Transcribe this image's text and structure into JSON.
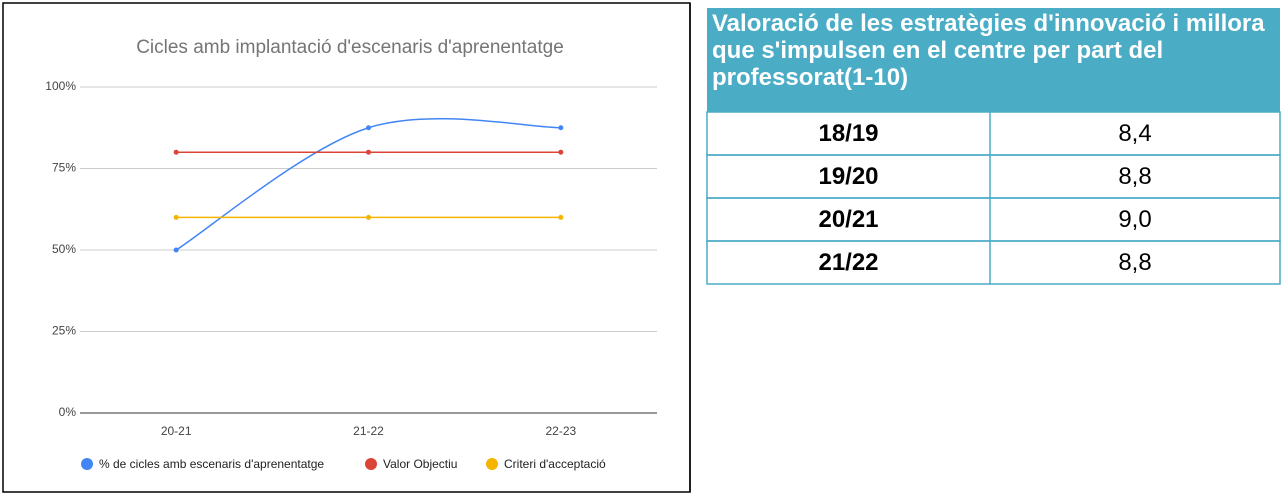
{
  "chart_data": {
    "type": "line",
    "title": "Cicles amb implantació d'escenaris d'aprenentatge",
    "categories": [
      "20-21",
      "21-22",
      "22-23"
    ],
    "series": [
      {
        "name": "% de cicles amb escenaris d'aprenentatge",
        "color": "#4285f4",
        "values": [
          50,
          87.5,
          87.5
        ]
      },
      {
        "name": "Valor Objectiu",
        "color": "#db4437",
        "values": [
          80,
          80,
          80
        ]
      },
      {
        "name": "Criteri d'acceptació",
        "color": "#f4b400",
        "values": [
          60,
          60,
          60
        ]
      }
    ],
    "ylim": [
      0,
      100
    ],
    "yticks": [
      {
        "value": 0,
        "label": "0%"
      },
      {
        "value": 25,
        "label": "25%"
      },
      {
        "value": 50,
        "label": "50%"
      },
      {
        "value": 75,
        "label": "75%"
      },
      {
        "value": 100,
        "label": "100%"
      }
    ],
    "grid": true,
    "legend": "bottom"
  },
  "table": {
    "header": "Valoració de les estratègies d'innovació i millora que s'impulsen en el centre per part del professorat(1-10)",
    "rows": [
      [
        "18/19",
        "8,4"
      ],
      [
        "19/20",
        "8,8"
      ],
      [
        "20/21",
        "9,0"
      ],
      [
        "21/22",
        "8,8"
      ]
    ]
  }
}
